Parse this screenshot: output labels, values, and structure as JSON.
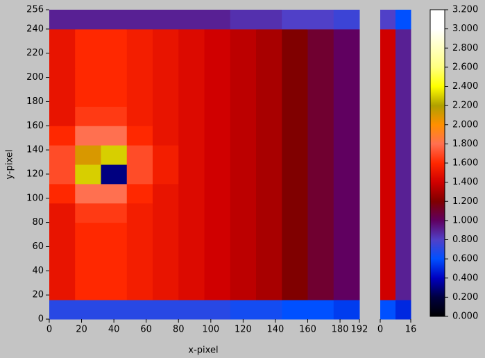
{
  "chart_data": {
    "type": "heatmap",
    "xlabel": "x-pixel",
    "ylabel": "y-pixel",
    "xlim": [
      0,
      192
    ],
    "ylim": [
      0,
      256
    ],
    "xticks": [
      0,
      20,
      40,
      60,
      80,
      100,
      120,
      140,
      160,
      180,
      192
    ],
    "yticks": [
      0,
      20,
      40,
      60,
      80,
      100,
      120,
      140,
      160,
      180,
      200,
      220,
      240,
      256
    ],
    "z": [
      [
        0.7,
        0.7,
        0.7,
        0.7,
        0.7,
        0.7,
        0.7,
        0.65,
        0.65,
        0.6,
        0.6,
        0.55
      ],
      [
        1.5,
        1.6,
        1.6,
        1.55,
        1.5,
        1.45,
        1.4,
        1.35,
        1.3,
        1.2,
        1.1,
        1.0
      ],
      [
        1.5,
        1.6,
        1.6,
        1.55,
        1.5,
        1.45,
        1.4,
        1.35,
        1.3,
        1.2,
        1.1,
        1.0
      ],
      [
        1.5,
        1.6,
        1.6,
        1.55,
        1.5,
        1.45,
        1.4,
        1.35,
        1.3,
        1.2,
        1.1,
        1.0
      ],
      [
        1.5,
        1.6,
        1.6,
        1.55,
        1.5,
        1.45,
        1.4,
        1.35,
        1.3,
        1.2,
        1.1,
        1.0
      ],
      [
        1.5,
        1.65,
        1.65,
        1.55,
        1.5,
        1.45,
        1.4,
        1.35,
        1.3,
        1.2,
        1.1,
        1.0
      ],
      [
        1.6,
        1.8,
        1.8,
        1.6,
        1.5,
        1.45,
        1.4,
        1.35,
        1.3,
        1.2,
        1.1,
        1.0
      ],
      [
        1.7,
        2.3,
        0.3,
        1.7,
        1.55,
        1.45,
        1.4,
        1.35,
        1.3,
        1.2,
        1.1,
        1.0
      ],
      [
        1.7,
        2.1,
        2.3,
        1.7,
        1.55,
        1.45,
        1.4,
        1.35,
        1.3,
        1.2,
        1.1,
        1.0
      ],
      [
        1.6,
        1.8,
        1.8,
        1.6,
        1.5,
        1.45,
        1.4,
        1.35,
        1.3,
        1.2,
        1.1,
        1.0
      ],
      [
        1.5,
        1.65,
        1.65,
        1.55,
        1.5,
        1.45,
        1.4,
        1.35,
        1.3,
        1.2,
        1.1,
        1.0
      ],
      [
        1.5,
        1.6,
        1.6,
        1.55,
        1.5,
        1.45,
        1.4,
        1.35,
        1.3,
        1.2,
        1.1,
        1.0
      ],
      [
        1.5,
        1.6,
        1.6,
        1.55,
        1.5,
        1.45,
        1.4,
        1.35,
        1.3,
        1.2,
        1.1,
        1.0
      ],
      [
        1.5,
        1.6,
        1.6,
        1.55,
        1.5,
        1.45,
        1.4,
        1.35,
        1.3,
        1.2,
        1.1,
        1.0
      ],
      [
        1.5,
        1.6,
        1.6,
        1.55,
        1.5,
        1.45,
        1.4,
        1.35,
        1.3,
        1.2,
        1.1,
        1.0
      ],
      [
        0.9,
        0.9,
        0.9,
        0.9,
        0.9,
        0.9,
        0.9,
        0.85,
        0.85,
        0.8,
        0.8,
        0.75
      ]
    ],
    "side": {
      "xlim": [
        0,
        16
      ],
      "xticks": [
        0,
        16
      ],
      "z": [
        [
          0.6,
          0.5
        ],
        [
          1.4,
          0.9
        ],
        [
          1.4,
          0.9
        ],
        [
          1.4,
          0.9
        ],
        [
          1.4,
          0.9
        ],
        [
          1.4,
          0.9
        ],
        [
          1.4,
          0.9
        ],
        [
          1.4,
          0.9
        ],
        [
          1.4,
          0.9
        ],
        [
          1.4,
          0.9
        ],
        [
          1.4,
          0.9
        ],
        [
          1.4,
          0.9
        ],
        [
          1.4,
          0.9
        ],
        [
          1.4,
          0.9
        ],
        [
          1.4,
          0.9
        ],
        [
          0.8,
          0.6
        ]
      ]
    },
    "colorbar": {
      "lim": [
        0,
        3.2
      ],
      "ticks": [
        {
          "value": 0,
          "label": "0.000"
        },
        {
          "value": 0.2,
          "label": "0.200"
        },
        {
          "value": 0.4,
          "label": "0.400"
        },
        {
          "value": 0.6,
          "label": "0.600"
        },
        {
          "value": 0.8,
          "label": "0.800"
        },
        {
          "value": 1,
          "label": "1.000"
        },
        {
          "value": 1.2,
          "label": "1.200"
        },
        {
          "value": 1.4,
          "label": "1.400"
        },
        {
          "value": 1.6,
          "label": "1.600"
        },
        {
          "value": 1.8,
          "label": "1.800"
        },
        {
          "value": 2,
          "label": "2.000"
        },
        {
          "value": 2.2,
          "label": "2.200"
        },
        {
          "value": 2.4,
          "label": "2.400"
        },
        {
          "value": 2.6,
          "label": "2.600"
        },
        {
          "value": 2.8,
          "label": "2.800"
        },
        {
          "value": 3,
          "label": "3.000"
        },
        {
          "value": 3.2,
          "label": "3.200"
        }
      ],
      "colors": [
        "#000000",
        "#000040",
        "#0000c0",
        "#0050ff",
        "#5040c8",
        "#600060",
        "#800000",
        "#d00000",
        "#ff2800",
        "#ff7050",
        "#ff9000",
        "#b0a000",
        "#ffff00",
        "#ffff80",
        "#ffffc0",
        "#ffffff",
        "#ffffff"
      ]
    }
  }
}
